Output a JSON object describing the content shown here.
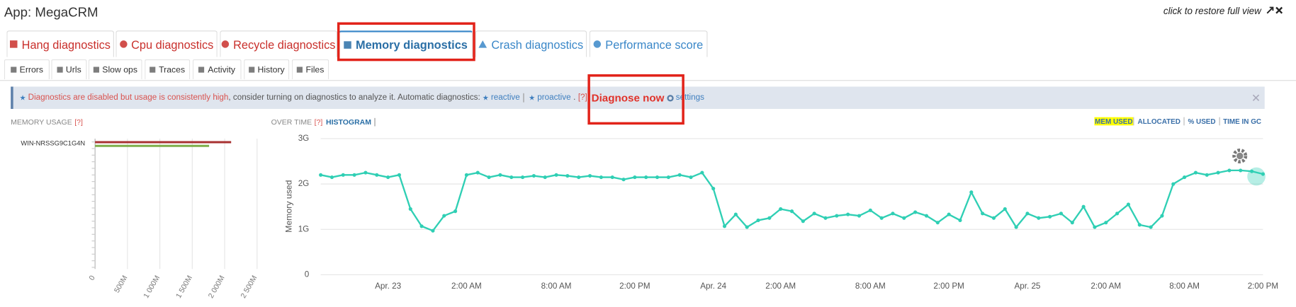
{
  "header": {
    "title": "App: MegaCRM",
    "restore": "click to restore full view"
  },
  "tabs": [
    "Hang diagnostics",
    "Cpu diagnostics",
    "Recycle diagnostics",
    "Memory diagnostics",
    "Crash diagnostics",
    "Performance score"
  ],
  "subtabs": [
    "Errors",
    "Urls",
    "Slow ops",
    "Traces",
    "Activity",
    "History",
    "Files"
  ],
  "alert": {
    "warning": "Diagnostics are disabled but usage is consistently high",
    "text": ", consider turning on diagnostics to analyze it. Automatic diagnostics:",
    "reactive": "reactive",
    "proactive": "proactive",
    "dot": ".",
    "help": "[?]",
    "diagnose": "Diagnose now",
    "settings": "settings"
  },
  "panel": {
    "memory_usage": "MEMORY USAGE",
    "memory_help": "[?]",
    "over_time": "OVER TIME",
    "over_time_help": "[?]",
    "histogram": "HISTOGRAM",
    "metrics": [
      "MEM USED",
      "ALLOCATED",
      "% USED",
      "TIME IN GC"
    ]
  },
  "chart_data": [
    {
      "type": "bar",
      "categories": [
        "WIN-NRSSG9C1G4N"
      ],
      "series": [
        {
          "color": "#a83232",
          "values": [
            2100
          ]
        },
        {
          "color": "#7fae4a",
          "values": [
            1760
          ]
        }
      ],
      "xlim": [
        0,
        2500
      ],
      "xticks": [
        0,
        {
          "value": 500,
          "label": "500M"
        },
        {
          "value": 1000,
          "label": "1 000M"
        },
        {
          "value": 1500,
          "label": "1 500M"
        },
        {
          "value": 2000,
          "label": "2 000M"
        },
        {
          "value": 2500,
          "label": "2 500M"
        }
      ],
      "grid": true
    },
    {
      "type": "line",
      "ylabel": "Memory used",
      "categories": [
        null,
        null,
        null,
        null,
        null,
        null,
        "Apr. 23",
        null,
        null,
        null,
        null,
        null,
        null,
        "2:00 AM",
        null,
        null,
        null,
        null,
        null,
        null,
        null,
        "8:00 AM",
        null,
        null,
        null,
        null,
        null,
        null,
        "2:00 PM",
        null,
        null,
        null,
        null,
        null,
        null,
        "Apr. 24",
        null,
        null,
        null,
        null,
        null,
        "2:00 AM",
        null,
        null,
        null,
        null,
        null,
        null,
        null,
        "8:00 AM",
        null,
        null,
        null,
        null,
        null,
        null,
        "2:00 PM",
        null,
        null,
        null,
        null,
        null,
        null,
        "Apr. 25",
        null,
        null,
        null,
        null,
        null,
        null,
        "2:00 AM",
        null,
        null,
        null,
        null,
        null,
        null,
        "8:00 AM",
        null,
        null,
        null,
        null,
        null,
        null,
        "2:00 PM"
      ],
      "series": [
        {
          "color": "#2fcfb4",
          "values": [
            2.2,
            2.15,
            2.2,
            2.2,
            2.25,
            2.2,
            2.15,
            2.2,
            1.45,
            1.07,
            0.97,
            1.3,
            1.4,
            2.2,
            2.25,
            2.15,
            2.2,
            2.15,
            2.15,
            2.18,
            2.15,
            2.2,
            2.18,
            2.15,
            2.18,
            2.15,
            2.15,
            2.1,
            2.15,
            2.15,
            2.15,
            2.15,
            2.2,
            2.15,
            2.25,
            1.9,
            1.07,
            1.33,
            1.05,
            1.2,
            1.25,
            1.45,
            1.4,
            1.18,
            1.35,
            1.25,
            1.3,
            1.33,
            1.3,
            1.42,
            1.25,
            1.35,
            1.25,
            1.38,
            1.3,
            1.15,
            1.33,
            1.2,
            1.82,
            1.35,
            1.25,
            1.45,
            1.05,
            1.35,
            1.25,
            1.28,
            1.35,
            1.15,
            1.5,
            1.05,
            1.15,
            1.35,
            1.55,
            1.1,
            1.05,
            1.3,
            2.0,
            2.15,
            2.25,
            2.2,
            2.25,
            2.3,
            2.3,
            2.28,
            2.22
          ]
        }
      ],
      "ylim": [
        0,
        3
      ],
      "yticks": [
        0,
        {
          "value": 1,
          "label": "1G"
        },
        {
          "value": 2,
          "label": "2G"
        },
        {
          "value": 3,
          "label": "3G"
        }
      ],
      "grid": true
    }
  ]
}
